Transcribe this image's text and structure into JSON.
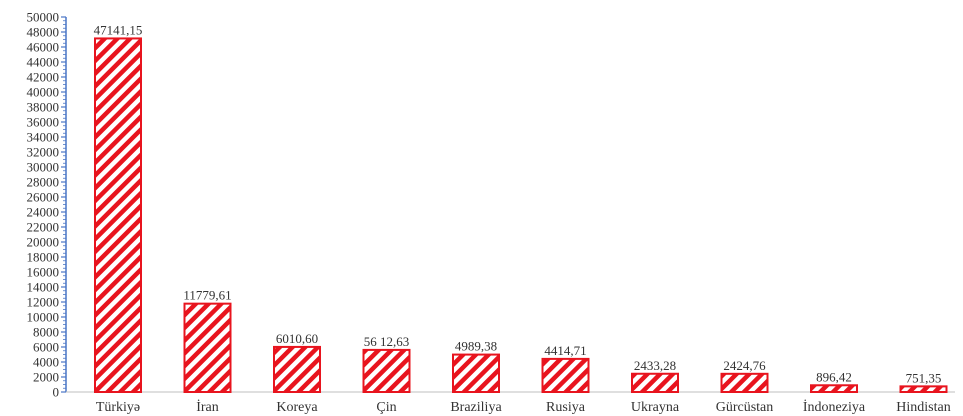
{
  "chart_data": {
    "type": "bar",
    "title": "",
    "xlabel": "",
    "ylabel": "",
    "categories": [
      "Türkiyə",
      "İran",
      "Koreya",
      "Çin",
      "Braziliya",
      "Rusiya",
      "Ukrayna",
      "Gürcüstan",
      "İndoneziya",
      "Hindistan"
    ],
    "values": [
      47141.15,
      11779.61,
      6010.6,
      5612.63,
      4989.38,
      4414.71,
      2433.28,
      2424.76,
      896.42,
      751.35
    ],
    "value_labels": [
      "47141,15",
      "11779,61",
      "6010,60",
      "56 12,63",
      "4989,38",
      "4414,71",
      "2433,28",
      "2424,76",
      "896,42",
      "751,35"
    ],
    "ylim": [
      0,
      50000
    ],
    "yticks": [
      "0",
      "2000",
      "4000",
      "6000",
      "8000",
      "10000",
      "12000",
      "14000",
      "16000",
      "18000",
      "20000",
      "22000",
      "24000",
      "26000",
      "28000",
      "30000",
      "32000",
      "34000",
      "36000",
      "38000",
      "40000",
      "42000",
      "44000",
      "46000",
      "48000",
      "50000"
    ],
    "grid": false,
    "legend": "none",
    "colors": {
      "bar_stroke": "#e8141e",
      "hatch": "#e8141e",
      "axis": "#4a76c6"
    }
  }
}
